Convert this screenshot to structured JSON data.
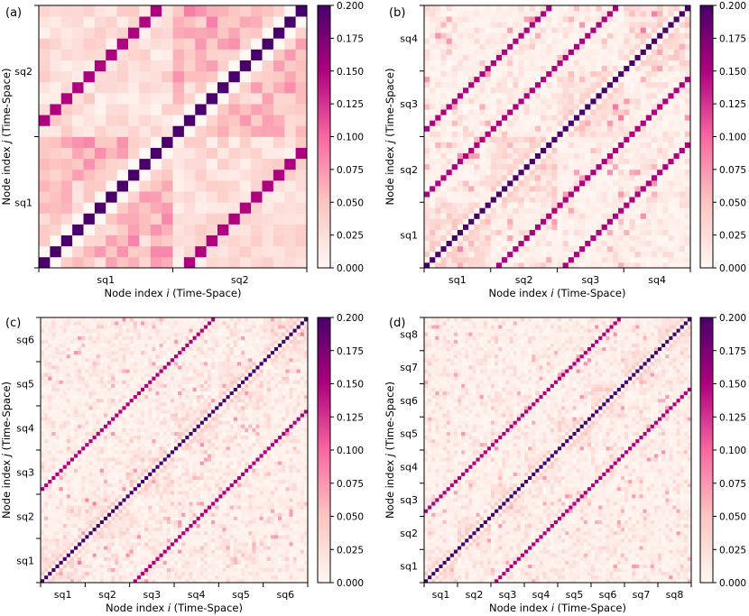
{
  "chart_data": [
    {
      "panel_label": "(a)",
      "type": "heatmap",
      "n": 24,
      "blocks": [
        "sq1",
        "sq2"
      ],
      "xlabel_main": "Node index ",
      "xlabel_var": "i",
      "xlabel_suffix": " (Time-Space)",
      "ylabel_main": "Node index ",
      "ylabel_var": "j",
      "ylabel_suffix": " (Time-Space)",
      "colorbar_ticks": [
        "0.000",
        "0.025",
        "0.050",
        "0.075",
        "0.100",
        "0.125",
        "0.150",
        "0.175",
        "0.200"
      ],
      "vmin": 0.0,
      "vmax": 0.2
    },
    {
      "panel_label": "(b)",
      "type": "heatmap",
      "n": 48,
      "blocks": [
        "sq1",
        "sq2",
        "sq3",
        "sq4"
      ],
      "xlabel_main": "Node index ",
      "xlabel_var": "i",
      "xlabel_suffix": " (Time-Space)",
      "ylabel_main": "Node index ",
      "ylabel_var": "j",
      "ylabel_suffix": " (Time-Space)",
      "colorbar_ticks": [
        "0.000",
        "0.025",
        "0.050",
        "0.075",
        "0.100",
        "0.125",
        "0.150",
        "0.175",
        "0.200"
      ],
      "vmin": 0.0,
      "vmax": 0.2
    },
    {
      "panel_label": "(c)",
      "type": "heatmap",
      "n": 72,
      "blocks": [
        "sq1",
        "sq2",
        "sq3",
        "sq4",
        "sq5",
        "sq6"
      ],
      "xlabel_main": "Node index ",
      "xlabel_var": "i",
      "xlabel_suffix": " (Time-Space)",
      "ylabel_main": "Node index ",
      "ylabel_var": "j",
      "ylabel_suffix": " (Time-Space)",
      "colorbar_ticks": [
        "0.000",
        "0.025",
        "0.050",
        "0.075",
        "0.100",
        "0.125",
        "0.150",
        "0.175",
        "0.200"
      ],
      "vmin": 0.0,
      "vmax": 0.2
    },
    {
      "panel_label": "(d)",
      "type": "heatmap",
      "n": 72,
      "blocks": [
        "sq1",
        "sq2",
        "sq3",
        "sq4",
        "sq5",
        "sq6",
        "sq7",
        "sq8"
      ],
      "xlabel_main": "Node index ",
      "xlabel_var": "i",
      "xlabel_suffix": " (Time-Space)",
      "ylabel_main": "Node index ",
      "ylabel_var": "j",
      "ylabel_suffix": " (Time-Space)",
      "colorbar_ticks": [
        "0.000",
        "0.025",
        "0.050",
        "0.075",
        "0.100",
        "0.125",
        "0.150",
        "0.175",
        "0.200"
      ],
      "vmin": 0.0,
      "vmax": 0.2
    }
  ],
  "colormap": [
    "#fff7f3",
    "#fcc5c0",
    "#f768a1",
    "#ae017e",
    "#49006a"
  ]
}
